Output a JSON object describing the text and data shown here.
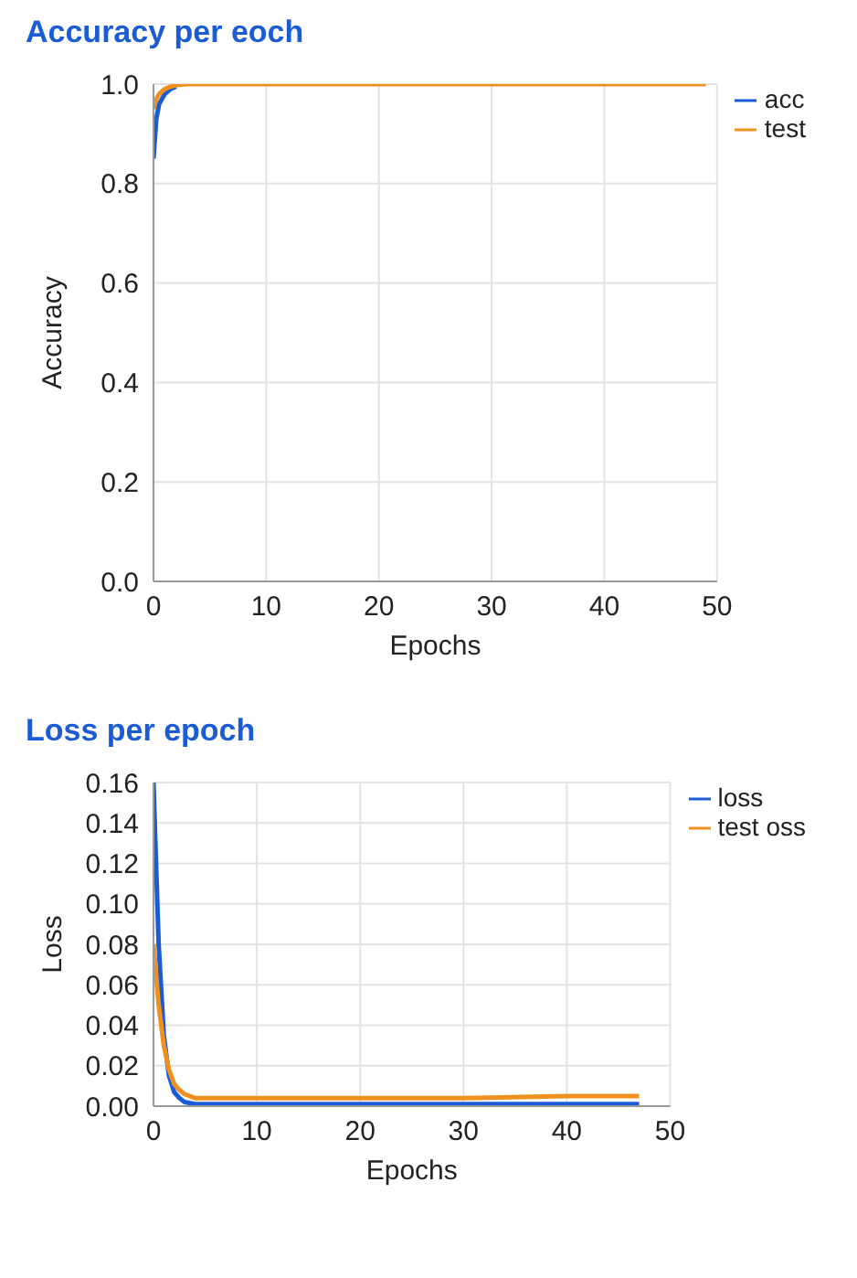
{
  "chart_data": [
    {
      "type": "line",
      "title": "Accuracy per eoch",
      "xlabel": "Epochs",
      "ylabel": "Accuracy",
      "x": [
        0,
        0.25,
        0.5,
        1,
        1.5,
        2,
        3,
        5,
        10,
        20,
        30,
        40,
        49
      ],
      "xlim": [
        0,
        50
      ],
      "xticks": [
        0,
        10,
        20,
        30,
        40,
        50
      ],
      "ylim": [
        0,
        1
      ],
      "yticks": [
        {
          "value": 0,
          "label": "0.0"
        },
        0.2,
        0.4,
        0.6,
        0.8,
        {
          "value": 1,
          "label": "1.0"
        }
      ],
      "grid": true,
      "legend": "top right",
      "marker": "none",
      "line_style": "solid",
      "series": [
        {
          "name": "acc",
          "color": "#1a5cd6",
          "values": [
            0.85,
            0.93,
            0.96,
            0.98,
            0.99,
            0.995,
            null,
            null,
            null,
            null,
            null,
            null,
            null
          ]
        },
        {
          "name": "test",
          "color": "#f0901e",
          "values": [
            0.95,
            0.97,
            0.98,
            0.99,
            0.995,
            0.998,
            1,
            1,
            1,
            1,
            1,
            1,
            1
          ]
        }
      ]
    },
    {
      "type": "line",
      "title": "Loss per epoch",
      "xlabel": "Epochs",
      "ylabel": "Loss",
      "x": [
        0,
        0.5,
        1,
        1.5,
        2,
        2.5,
        3,
        4,
        5,
        10,
        20,
        30,
        40,
        47
      ],
      "xlim": [
        0,
        50
      ],
      "xticks": [
        0,
        10,
        20,
        30,
        40,
        50
      ],
      "ylim": [
        0,
        0.16
      ],
      "yticks": [
        {
          "value": 0,
          "label": "0.00"
        },
        {
          "value": 0.02,
          "label": "0.02"
        },
        {
          "value": 0.04,
          "label": "0.04"
        },
        {
          "value": 0.06,
          "label": "0.06"
        },
        {
          "value": 0.08,
          "label": "0.08"
        },
        {
          "value": 0.1,
          "label": "0.10"
        },
        {
          "value": 0.12,
          "label": "0.12"
        },
        {
          "value": 0.14,
          "label": "0.14"
        },
        {
          "value": 0.16,
          "label": "0.16"
        }
      ],
      "grid": true,
      "legend": "top right",
      "marker": "none",
      "line_style": "solid",
      "series": [
        {
          "name": "loss",
          "color": "#1a5cd6",
          "values": [
            0.16,
            0.08,
            0.035,
            0.015,
            0.007,
            0.004,
            0.002,
            0.001,
            0.001,
            0.001,
            0.001,
            0.001,
            0.001,
            0.001
          ]
        },
        {
          "name": "test oss",
          "color": "#f0901e",
          "values": [
            0.08,
            0.05,
            0.03,
            0.018,
            0.011,
            0.008,
            0.006,
            0.004,
            0.004,
            0.004,
            0.004,
            0.004,
            0.005,
            0.005
          ]
        }
      ]
    }
  ]
}
